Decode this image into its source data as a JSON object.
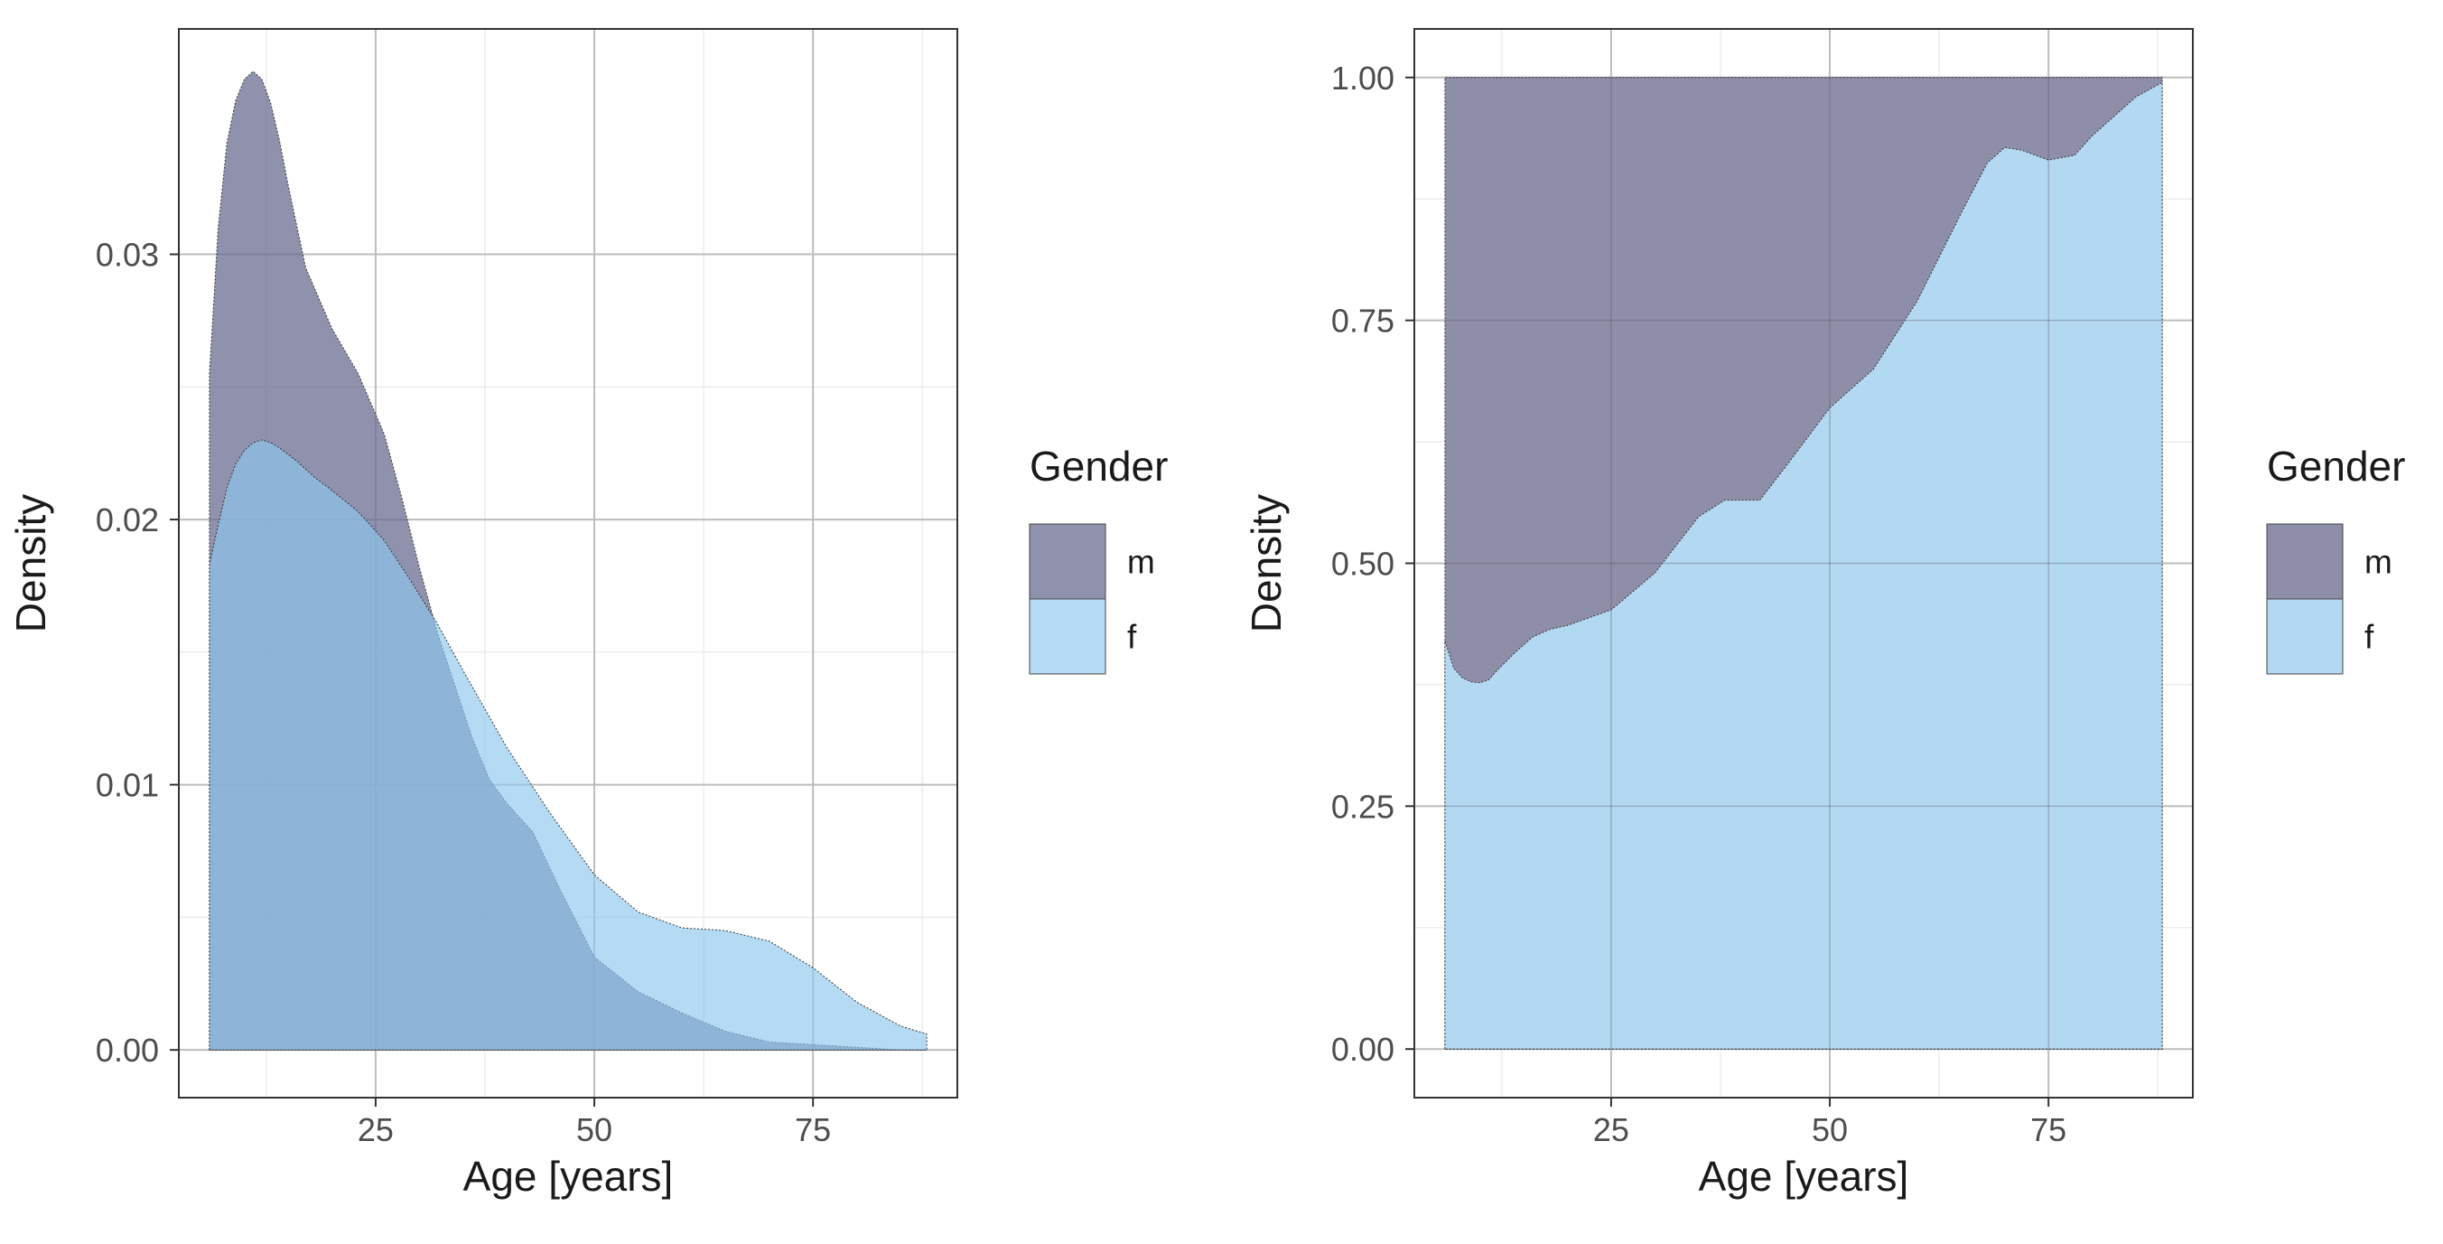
{
  "colors": {
    "m": "#6b6d91",
    "f": "#8ec8ee",
    "m_opacity": 0.75,
    "f_opacity": 0.65,
    "panel_border": "#333333",
    "grid_major": "#bdbdbd",
    "grid_minor": "#ececec"
  },
  "chart_data": [
    {
      "type": "area",
      "title": "",
      "xlabel": "Age [years]",
      "ylabel": "Density",
      "xlim": [
        2.5,
        91.5
      ],
      "ylim": [
        -0.0018,
        0.0385
      ],
      "x_ticks": [
        25,
        50,
        75
      ],
      "x_tick_labels": [
        "25",
        "50",
        "75"
      ],
      "y_ticks": [
        0.0,
        0.01,
        0.02,
        0.03
      ],
      "y_tick_labels": [
        "0.00",
        "0.01",
        "0.02",
        "0.03"
      ],
      "legend": {
        "title": "Gender",
        "position": "right",
        "entries": [
          {
            "key": "m",
            "label": "m"
          },
          {
            "key": "f",
            "label": "f"
          }
        ]
      },
      "series": [
        {
          "name": "m",
          "x": [
            6,
            7,
            8,
            9,
            10,
            11,
            12,
            13,
            14,
            15,
            17,
            20,
            23,
            26,
            28,
            30,
            32,
            34,
            36,
            38,
            40,
            43,
            46,
            50,
            55,
            60,
            65,
            70,
            75,
            80,
            85,
            88
          ],
          "y": [
            0.0255,
            0.031,
            0.0342,
            0.0358,
            0.0366,
            0.0369,
            0.0366,
            0.0357,
            0.0343,
            0.0326,
            0.0295,
            0.0272,
            0.0255,
            0.0232,
            0.0208,
            0.0182,
            0.0158,
            0.0138,
            0.0118,
            0.0102,
            0.0093,
            0.0082,
            0.0061,
            0.0035,
            0.0022,
            0.0014,
            0.0007,
            0.0003,
            0.0002,
            0.0001,
            0.0,
            0.0
          ]
        },
        {
          "name": "f",
          "x": [
            6,
            7,
            8,
            9,
            10,
            11,
            12,
            13,
            14,
            16,
            18,
            20,
            23,
            26,
            29,
            32,
            35,
            40,
            45,
            50,
            55,
            60,
            65,
            70,
            75,
            80,
            85,
            88
          ],
          "y": [
            0.0183,
            0.0198,
            0.0212,
            0.0221,
            0.0226,
            0.0229,
            0.023,
            0.0229,
            0.0227,
            0.0222,
            0.0216,
            0.0211,
            0.0203,
            0.0192,
            0.0177,
            0.0161,
            0.0143,
            0.0114,
            0.0089,
            0.0066,
            0.0052,
            0.0046,
            0.0045,
            0.0041,
            0.0031,
            0.0018,
            0.0009,
            0.0006
          ]
        }
      ]
    },
    {
      "type": "area",
      "title": "",
      "xlabel": "Age [years]",
      "ylabel": "Density",
      "xlim": [
        2.5,
        91.5
      ],
      "ylim": [
        -0.05,
        1.05
      ],
      "x_ticks": [
        25,
        50,
        75
      ],
      "x_tick_labels": [
        "25",
        "50",
        "75"
      ],
      "y_ticks": [
        0.0,
        0.25,
        0.5,
        0.75,
        1.0
      ],
      "y_tick_labels": [
        "0.00",
        "0.25",
        "0.50",
        "0.75",
        "1.00"
      ],
      "legend": {
        "title": "Gender",
        "position": "right",
        "entries": [
          {
            "key": "m",
            "label": "m"
          },
          {
            "key": "f",
            "label": "f"
          }
        ]
      },
      "stacked_fill": true,
      "series": [
        {
          "name": "f",
          "x": [
            6,
            7,
            8,
            9,
            10,
            11,
            12,
            14,
            16,
            18,
            20,
            25,
            30,
            35,
            38,
            42,
            45,
            50,
            55,
            60,
            65,
            68,
            70,
            72,
            75,
            78,
            80,
            85,
            88
          ],
          "y": [
            0.42,
            0.392,
            0.382,
            0.378,
            0.377,
            0.38,
            0.39,
            0.408,
            0.424,
            0.432,
            0.436,
            0.452,
            0.49,
            0.548,
            0.565,
            0.565,
            0.6,
            0.66,
            0.7,
            0.77,
            0.86,
            0.912,
            0.928,
            0.925,
            0.915,
            0.92,
            0.94,
            0.98,
            0.995
          ]
        },
        {
          "name": "m",
          "x": [
            6,
            88
          ],
          "y": [
            1.0,
            1.0
          ]
        }
      ]
    }
  ]
}
